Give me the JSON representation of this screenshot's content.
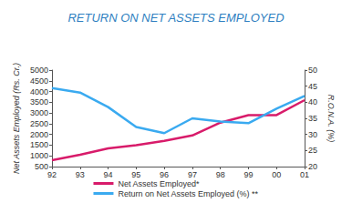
{
  "chart_data": {
    "type": "line",
    "title": "RETURN ON NET ASSETS EMPLOYED",
    "categories": [
      "92",
      "93",
      "94",
      "95",
      "96",
      "97",
      "98",
      "99",
      "00",
      "01"
    ],
    "y_label": "Net Assets Employed (Rs. Cr.)",
    "y2_label": "R.O.N.A. (%)",
    "series": [
      {
        "name": "Net Assets Employed*",
        "color": "#d81b6a",
        "values": [
          800,
          1050,
          1350,
          1500,
          1700,
          1950,
          2550,
          2900,
          2900,
          3600
        ]
      },
      {
        "name": "Return on Net Assets Employed (%) **",
        "color": "#3aaaf0",
        "axis": "y2",
        "values": [
          44.4,
          43,
          38.5,
          32.3,
          30.4,
          35,
          34,
          33.5,
          38,
          42
        ]
      }
    ],
    "ylim": [
      500,
      5000
    ],
    "yticks": [
      500,
      1000,
      1500,
      2000,
      2500,
      3000,
      3500,
      4000,
      4500,
      5000
    ],
    "y2lim": [
      20,
      50
    ],
    "y2ticks": [
      20,
      25,
      30,
      35,
      40,
      45,
      50
    ],
    "grid": false,
    "legend": "bottom"
  }
}
